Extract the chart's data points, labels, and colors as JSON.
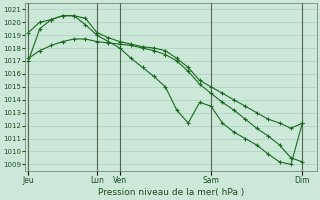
{
  "xlabel": "Pression niveau de la mer( hPa )",
  "bg_color": "#cce8d8",
  "grid_color": "#aad0c0",
  "line_color": "#1a6a20",
  "ylim": [
    1008.5,
    1021.5
  ],
  "yticks": [
    1009,
    1010,
    1011,
    1012,
    1013,
    1014,
    1015,
    1016,
    1017,
    1018,
    1019,
    1020,
    1021
  ],
  "x_day_labels": [
    "Jeu",
    "Lun",
    "Ven",
    "Sam",
    "Dim"
  ],
  "x_day_positions": [
    0,
    6,
    8,
    16,
    24
  ],
  "xlim": [
    -0.3,
    25.3
  ],
  "series1_x": [
    0,
    1,
    2,
    3,
    4,
    5,
    6,
    7,
    8,
    9,
    10,
    11,
    12,
    13,
    14,
    15,
    16,
    17,
    18,
    19,
    20,
    21,
    22,
    23,
    24
  ],
  "series1_y": [
    1019.2,
    1020.0,
    1020.2,
    1020.5,
    1020.5,
    1020.3,
    1019.2,
    1018.8,
    1018.5,
    1018.3,
    1018.1,
    1018.0,
    1017.8,
    1017.2,
    1016.5,
    1015.5,
    1015.0,
    1014.5,
    1014.0,
    1013.5,
    1013.0,
    1012.5,
    1012.2,
    1011.8,
    1012.2
  ],
  "series2_x": [
    0,
    1,
    2,
    3,
    4,
    5,
    6,
    7,
    8,
    9,
    10,
    11,
    12,
    13,
    14,
    15,
    16,
    17,
    18,
    19,
    20,
    21,
    22,
    23,
    24
  ],
  "series2_y": [
    1017.2,
    1017.8,
    1018.2,
    1018.5,
    1018.7,
    1018.7,
    1018.5,
    1018.4,
    1018.3,
    1018.2,
    1018.0,
    1017.8,
    1017.5,
    1017.0,
    1016.2,
    1015.2,
    1014.5,
    1013.8,
    1013.2,
    1012.5,
    1011.8,
    1011.2,
    1010.5,
    1009.5,
    1009.2
  ],
  "series3_x": [
    0,
    1,
    2,
    3,
    4,
    5,
    6,
    7,
    8,
    9,
    10,
    11,
    12,
    13,
    14,
    15,
    16,
    17,
    18,
    19,
    20,
    21,
    22,
    23,
    24
  ],
  "series3_y": [
    1017.0,
    1019.5,
    1020.2,
    1020.5,
    1020.5,
    1019.8,
    1019.0,
    1018.5,
    1018.0,
    1017.2,
    1016.5,
    1015.8,
    1015.0,
    1013.2,
    1012.2,
    1013.8,
    1013.5,
    1012.2,
    1011.5,
    1011.0,
    1010.5,
    1009.8,
    1009.2,
    1009.0,
    1012.2
  ]
}
